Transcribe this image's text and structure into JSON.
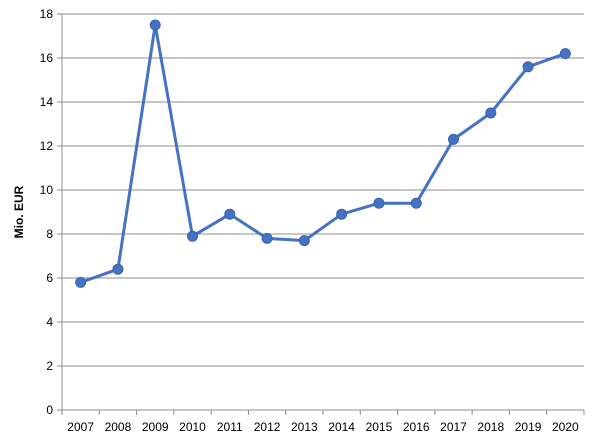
{
  "chart_data": {
    "type": "line",
    "title": "",
    "xlabel": "",
    "ylabel": "Mio. EUR",
    "ylim": [
      0,
      18
    ],
    "y_ticks": [
      0,
      2,
      4,
      6,
      8,
      10,
      12,
      14,
      16,
      18
    ],
    "grid": true,
    "legend": "none",
    "categories": [
      "2007",
      "2008",
      "2009",
      "2010",
      "2011",
      "2012",
      "2013",
      "2014",
      "2015",
      "2016",
      "2017",
      "2018",
      "2019",
      "2020"
    ],
    "series": [
      {
        "values": [
          5.8,
          6.4,
          17.5,
          7.9,
          8.9,
          7.8,
          7.7,
          8.9,
          9.4,
          9.4,
          12.3,
          13.5,
          15.6,
          16.2
        ],
        "color": "#4472C4"
      }
    ]
  },
  "colors": {
    "line": "#4472C4",
    "marker": "#4472C4",
    "grid": "#8c8c8c",
    "axis": "#8c8c8c"
  }
}
